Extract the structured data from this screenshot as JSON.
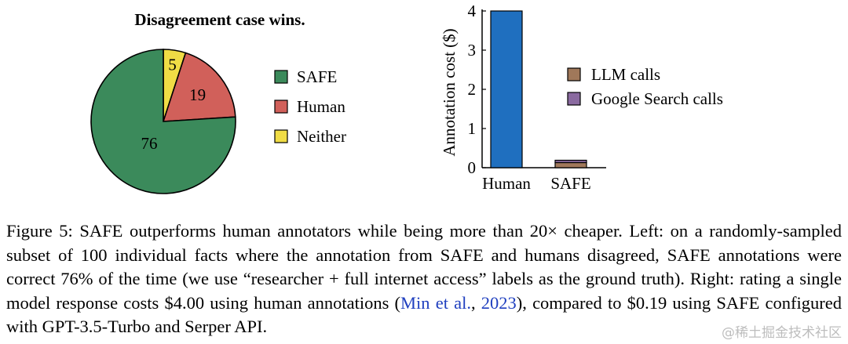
{
  "chart_data": [
    {
      "type": "pie",
      "title": "Disagreement case wins.",
      "categories": [
        "SAFE",
        "Human",
        "Neither"
      ],
      "values": [
        76,
        19,
        5
      ],
      "colors": [
        "#3b8a5b",
        "#d1605a",
        "#f0dc45"
      ],
      "legend_position": "right"
    },
    {
      "type": "bar",
      "title": "",
      "xlabel": "",
      "ylabel": "Annotation cost ($)",
      "categories": [
        "Human",
        "SAFE"
      ],
      "ylim": [
        0,
        4
      ],
      "yticks": [
        "0",
        "1",
        "2",
        "3",
        "4"
      ],
      "series": [
        {
          "name": "",
          "values": [
            4.0,
            0
          ],
          "color": "#1f6fbf"
        },
        {
          "name": "LLM calls",
          "values": [
            0,
            0.13
          ],
          "color": "#a0785a"
        },
        {
          "name": "Google Search calls",
          "values": [
            0,
            0.06
          ],
          "color": "#8a6aa0"
        }
      ],
      "legend_position": "center-right"
    }
  ],
  "caption": {
    "line1": "Figure 5: SAFE outperforms human annotators while being more than 20× cheaper. Left: on a randomly-sampled subset of 100 individual facts where the annotation from SAFE and humans disagreed, SAFE annotations were correct 76% of the time (we use “researcher + full internet access” labels as the ground truth). Right: rating a single model response costs $4.00 using human annotations (",
    "cite_author": "Min et al.",
    "cite_sep": ", ",
    "cite_year": "2023",
    "line_end": "), compared to $0.19 using SAFE configured with GPT-3.5-Turbo and Serper API."
  },
  "watermark": "@稀土掘金技术社区"
}
